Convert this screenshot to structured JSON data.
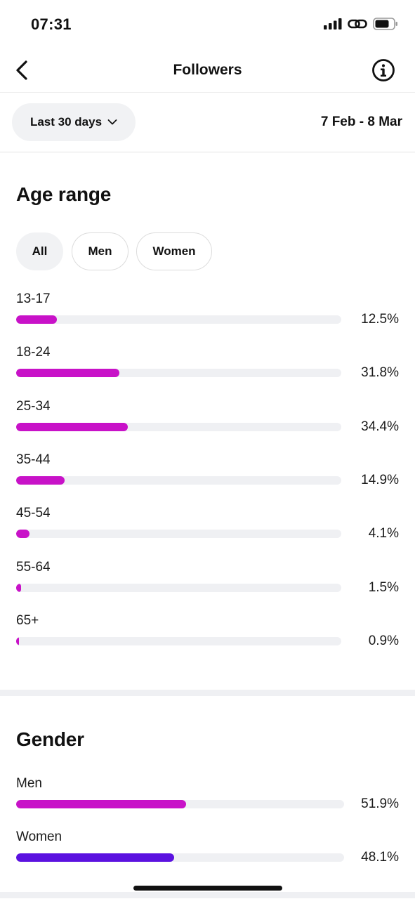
{
  "status_bar": {
    "time": "07:31",
    "icons": [
      "signal-icon",
      "link-icon",
      "battery-icon"
    ]
  },
  "header": {
    "title": "Followers",
    "back_icon": "chevron-left-icon",
    "info_icon": "info-icon"
  },
  "filter": {
    "period_label": "Last 30 days",
    "date_range": "7 Feb - 8 Mar"
  },
  "age_range": {
    "title": "Age range",
    "chips": [
      {
        "label": "All",
        "selected": true
      },
      {
        "label": "Men",
        "selected": false
      },
      {
        "label": "Women",
        "selected": false
      }
    ],
    "items": [
      {
        "label": "13-17",
        "value": "12.5%",
        "fraction": 0.125
      },
      {
        "label": "18-24",
        "value": "31.8%",
        "fraction": 0.318
      },
      {
        "label": "25-34",
        "value": "34.4%",
        "fraction": 0.344
      },
      {
        "label": "35-44",
        "value": "14.9%",
        "fraction": 0.149
      },
      {
        "label": "45-54",
        "value": "4.1%",
        "fraction": 0.041
      },
      {
        "label": "55-64",
        "value": "1.5%",
        "fraction": 0.015
      },
      {
        "label": "65+",
        "value": "0.9%",
        "fraction": 0.009
      }
    ]
  },
  "gender": {
    "title": "Gender",
    "items": [
      {
        "label": "Men",
        "value": "51.9%",
        "fraction": 0.519
      },
      {
        "label": "Women",
        "value": "48.1%",
        "fraction": 0.481
      }
    ]
  },
  "colors": {
    "age_bar": "#c812c8",
    "men_bar": "#c812c8",
    "women_bar": "#5b12e0",
    "track": "#eff0f3"
  }
}
